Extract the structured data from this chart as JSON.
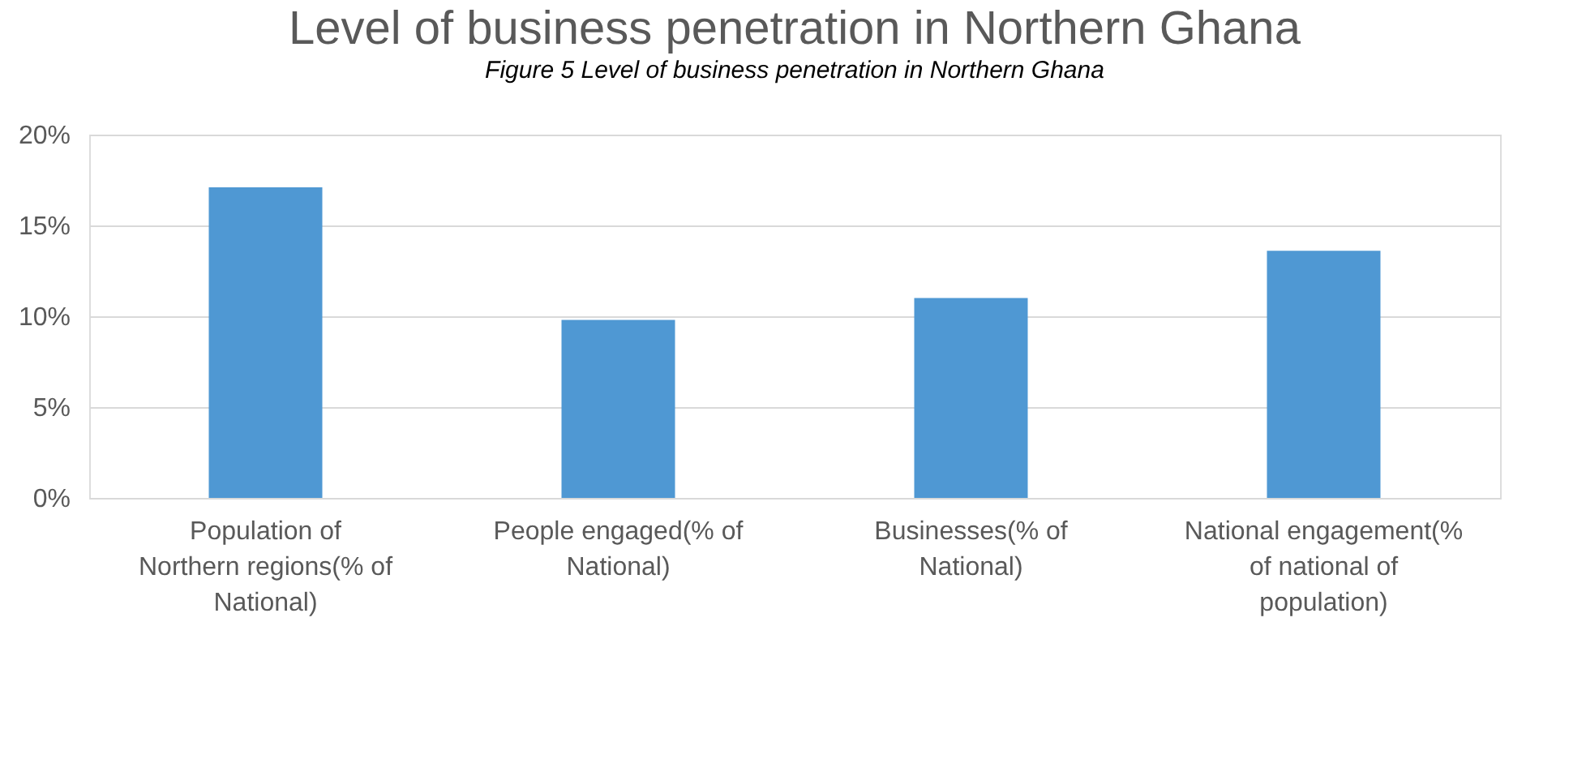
{
  "chart_data": {
    "type": "bar",
    "title": "Level of business penetration in Northern Ghana",
    "annotations": [
      "Figure 5 Level of business penetration in Northern Ghana"
    ],
    "categories": [
      "Population of Northern regions(% of National)",
      "People engaged(% of National)",
      "Businesses(% of National)",
      "National engagement(% of national of population)"
    ],
    "values": [
      17.1,
      9.8,
      11.0,
      13.6
    ],
    "color": "#4f98d3",
    "ylim": [
      0,
      20
    ],
    "yticks": [
      {
        "value": 0,
        "label": "0%"
      },
      {
        "value": 5,
        "label": "5%"
      },
      {
        "value": 10,
        "label": "10%"
      },
      {
        "value": 15,
        "label": "15%"
      },
      {
        "value": 20,
        "label": "20%"
      }
    ],
    "grid": "y"
  }
}
